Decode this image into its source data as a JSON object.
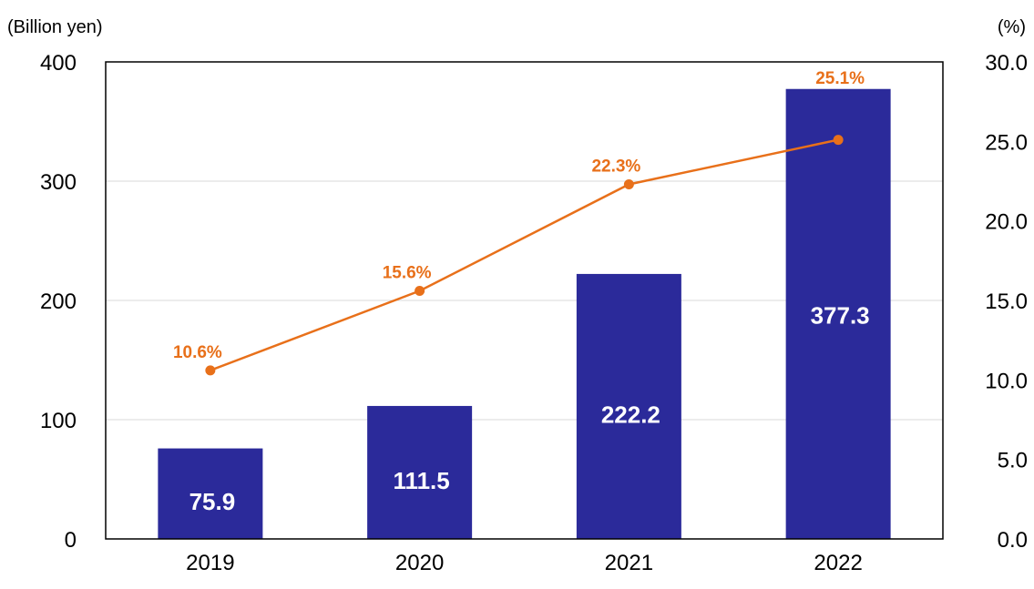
{
  "chart_data": {
    "type": "bar",
    "categories": [
      "2019",
      "2020",
      "2021",
      "2022"
    ],
    "series": [
      {
        "type": "bar",
        "axis": "left",
        "values": [
          75.9,
          111.5,
          222.2,
          377.3
        ],
        "labels": [
          "75.9",
          "111.5",
          "222.2",
          "377.3"
        ],
        "color": "#2B2A9A"
      },
      {
        "type": "line",
        "axis": "right",
        "values": [
          10.6,
          15.6,
          22.3,
          25.1
        ],
        "labels": [
          "10.6%",
          "15.6%",
          "22.3%",
          "25.1%"
        ],
        "color": "#E8701A"
      }
    ],
    "left_axis": {
      "unit": "(Billion yen)",
      "min": 0,
      "max": 400,
      "ticks": [
        "0",
        "100",
        "200",
        "300",
        "400"
      ]
    },
    "right_axis": {
      "unit": "(%)",
      "min": 0,
      "max": 30,
      "ticks": [
        "0.0",
        "5.0",
        "10.0",
        "15.0",
        "20.0",
        "25.0",
        "30.0"
      ]
    },
    "grid": true,
    "legend": "none"
  }
}
